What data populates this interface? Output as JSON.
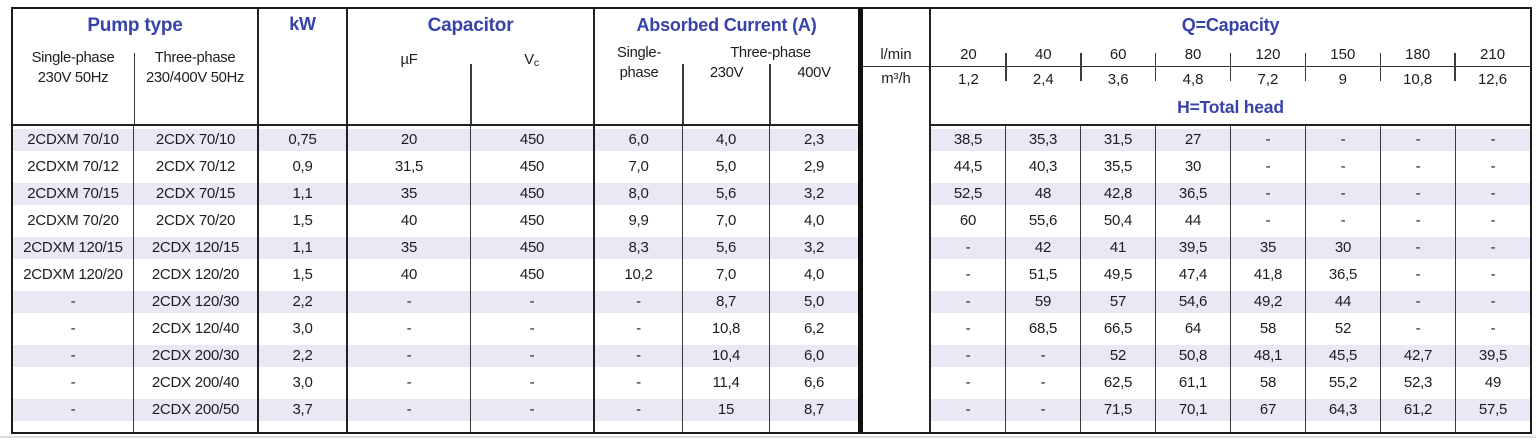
{
  "header": {
    "pump_type": {
      "title": "Pump type",
      "col1_line1": "Single-phase",
      "col1_line2": "230V 50Hz",
      "col2_line1": "Three-phase",
      "col2_line2": "230/400V 50Hz"
    },
    "kw_label": "kW",
    "capacitor": {
      "title": "Capacitor",
      "uf_label": "µF",
      "vc_main": "V",
      "vc_sub": "c"
    },
    "absorbed": {
      "title": "Absorbed Current (A)",
      "single_line1": "Single-",
      "single_line2": "phase",
      "three_label": "Three-phase",
      "v230": "230V",
      "v400": "400V"
    },
    "units": {
      "lmin": "l/min",
      "m3h": "m³/h"
    },
    "capacity": {
      "title": "Q=Capacity",
      "head_label": "H=Total head",
      "lmin_values": [
        "20",
        "40",
        "60",
        "80",
        "120",
        "150",
        "180",
        "210"
      ],
      "m3h_values": [
        "1,2",
        "2,4",
        "3,6",
        "4,8",
        "7,2",
        "9",
        "10,8",
        "12,6"
      ]
    }
  },
  "rows": [
    {
      "sp": "2CDXM 70/10",
      "tp": "2CDX 70/10",
      "kw": "0,75",
      "uf": "20",
      "vc": "450",
      "i1": "6,0",
      "i230": "4,0",
      "i400": "2,3",
      "q": [
        "38,5",
        "35,3",
        "31,5",
        "27",
        "-",
        "-",
        "-",
        "-"
      ]
    },
    {
      "sp": "2CDXM 70/12",
      "tp": "2CDX 70/12",
      "kw": "0,9",
      "uf": "31,5",
      "vc": "450",
      "i1": "7,0",
      "i230": "5,0",
      "i400": "2,9",
      "q": [
        "44,5",
        "40,3",
        "35,5",
        "30",
        "-",
        "-",
        "-",
        "-"
      ]
    },
    {
      "sp": "2CDXM 70/15",
      "tp": "2CDX 70/15",
      "kw": "1,1",
      "uf": "35",
      "vc": "450",
      "i1": "8,0",
      "i230": "5,6",
      "i400": "3,2",
      "q": [
        "52,5",
        "48",
        "42,8",
        "36,5",
        "-",
        "-",
        "-",
        "-"
      ]
    },
    {
      "sp": "2CDXM 70/20",
      "tp": "2CDX 70/20",
      "kw": "1,5",
      "uf": "40",
      "vc": "450",
      "i1": "9,9",
      "i230": "7,0",
      "i400": "4,0",
      "q": [
        "60",
        "55,6",
        "50,4",
        "44",
        "-",
        "-",
        "-",
        "-"
      ]
    },
    {
      "sp": "2CDXM 120/15",
      "tp": "2CDX 120/15",
      "kw": "1,1",
      "uf": "35",
      "vc": "450",
      "i1": "8,3",
      "i230": "5,6",
      "i400": "3,2",
      "q": [
        "-",
        "42",
        "41",
        "39,5",
        "35",
        "30",
        "-",
        "-"
      ]
    },
    {
      "sp": "2CDXM 120/20",
      "tp": "2CDX 120/20",
      "kw": "1,5",
      "uf": "40",
      "vc": "450",
      "i1": "10,2",
      "i230": "7,0",
      "i400": "4,0",
      "q": [
        "-",
        "51,5",
        "49,5",
        "47,4",
        "41,8",
        "36,5",
        "-",
        "-"
      ]
    },
    {
      "sp": "-",
      "tp": "2CDX 120/30",
      "kw": "2,2",
      "uf": "-",
      "vc": "-",
      "i1": "-",
      "i230": "8,7",
      "i400": "5,0",
      "q": [
        "-",
        "59",
        "57",
        "54,6",
        "49,2",
        "44",
        "-",
        "-"
      ]
    },
    {
      "sp": "-",
      "tp": "2CDX 120/40",
      "kw": "3,0",
      "uf": "-",
      "vc": "-",
      "i1": "-",
      "i230": "10,8",
      "i400": "6,2",
      "q": [
        "-",
        "68,5",
        "66,5",
        "64",
        "58",
        "52",
        "-",
        "-"
      ]
    },
    {
      "sp": "-",
      "tp": "2CDX 200/30",
      "kw": "2,2",
      "uf": "-",
      "vc": "-",
      "i1": "-",
      "i230": "10,4",
      "i400": "6,0",
      "q": [
        "-",
        "-",
        "52",
        "50,8",
        "48,1",
        "45,5",
        "42,7",
        "39,5"
      ]
    },
    {
      "sp": "-",
      "tp": "2CDX 200/40",
      "kw": "3,0",
      "uf": "-",
      "vc": "-",
      "i1": "-",
      "i230": "11,4",
      "i400": "6,6",
      "q": [
        "-",
        "-",
        "62,5",
        "61,1",
        "58",
        "55,2",
        "52,3",
        "49"
      ]
    },
    {
      "sp": "-",
      "tp": "2CDX 200/50",
      "kw": "3,7",
      "uf": "-",
      "vc": "-",
      "i1": "-",
      "i230": "15",
      "i400": "8,7",
      "q": [
        "-",
        "-",
        "71,5",
        "70,1",
        "67",
        "64,3",
        "61,2",
        "57,5"
      ]
    }
  ],
  "colors": {
    "heading_blue": "#3743a8",
    "row_stripe": "#e8e9f4",
    "text": "#1d1d1f",
    "grid_line": "#3a3a3a",
    "frame": "#1a1a1a"
  }
}
